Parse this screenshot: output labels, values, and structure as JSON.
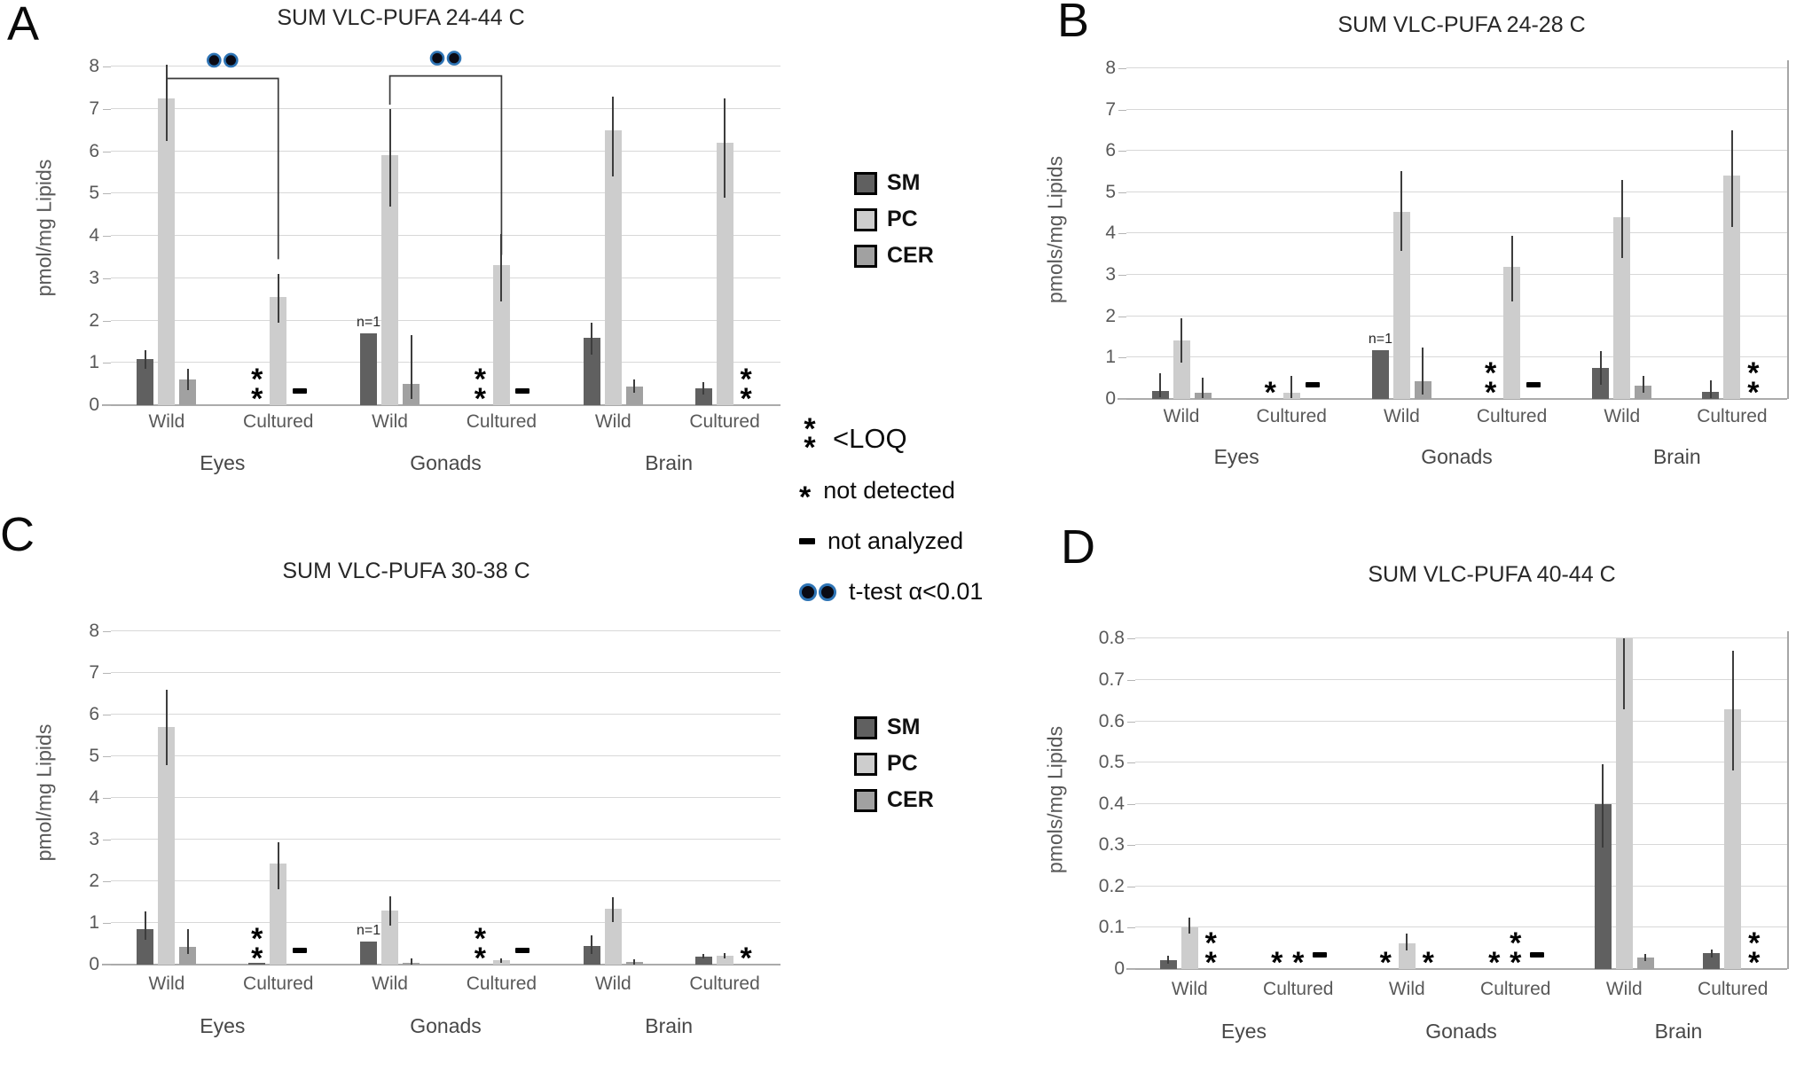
{
  "legend": {
    "series": [
      {
        "label": "SM",
        "color": "#606060"
      },
      {
        "label": "PC",
        "color": "#cdcdcd"
      },
      {
        "label": "CER",
        "color": "#a1a1a1"
      }
    ]
  },
  "symbol_legend": {
    "loq": "<LOQ",
    "nd": "not detected",
    "na": "not analyzed",
    "ttest": "t-test α<0.01"
  },
  "annotations": {
    "n1": "n=1"
  },
  "bracket_color": "#3a3a3a",
  "dot_fill": "#0a0a14",
  "dot_ring": "#2e74b5",
  "chart_data": [
    {
      "id": "A",
      "type": "bar",
      "label": "A",
      "title": "SUM VLC-PUFA 24-44 C",
      "ylabel": "pmol/mg Lipids",
      "ymax": 8,
      "ystep": 1,
      "decimals": 0,
      "series_names": [
        "SM",
        "PC",
        "CER"
      ],
      "groups": [
        {
          "name": "Eyes",
          "subs": [
            {
              "name": "Wild",
              "slots": [
                {
                  "s": "SM",
                  "v": 1.08,
                  "e": [
                    0.85,
                    1.3
                  ]
                },
                {
                  "s": "PC",
                  "v": 7.25,
                  "e": [
                    6.25,
                    8.05
                  ]
                },
                {
                  "s": "CER",
                  "v": 0.6,
                  "e": [
                    0.35,
                    0.85
                  ]
                }
              ]
            },
            {
              "name": "Cultured",
              "slots": [
                {
                  "s": "SM",
                  "sym": "loq"
                },
                {
                  "s": "PC",
                  "v": 2.55,
                  "e": [
                    1.95,
                    3.1
                  ]
                },
                {
                  "s": "CER",
                  "sym": "na"
                }
              ]
            }
          ]
        },
        {
          "name": "Gonads",
          "subs": [
            {
              "name": "Wild",
              "slots": [
                {
                  "s": "SM",
                  "v": 1.7,
                  "n1": true
                },
                {
                  "s": "PC",
                  "v": 5.9,
                  "e": [
                    4.7,
                    7.0
                  ]
                },
                {
                  "s": "CER",
                  "v": 0.5,
                  "e": [
                    0.15,
                    1.65
                  ]
                }
              ]
            },
            {
              "name": "Cultured",
              "slots": [
                {
                  "s": "SM",
                  "sym": "loq"
                },
                {
                  "s": "PC",
                  "v": 3.3,
                  "e": [
                    2.45,
                    4.05
                  ]
                },
                {
                  "s": "CER",
                  "sym": "na"
                }
              ]
            }
          ]
        },
        {
          "name": "Brain",
          "subs": [
            {
              "name": "Wild",
              "slots": [
                {
                  "s": "SM",
                  "v": 1.6,
                  "e": [
                    1.2,
                    1.95
                  ]
                },
                {
                  "s": "PC",
                  "v": 6.5,
                  "e": [
                    5.4,
                    7.3
                  ]
                },
                {
                  "s": "CER",
                  "v": 0.45,
                  "e": [
                    0.3,
                    0.6
                  ]
                }
              ]
            },
            {
              "name": "Cultured",
              "slots": [
                {
                  "s": "SM",
                  "v": 0.4,
                  "e": [
                    0.25,
                    0.55
                  ]
                },
                {
                  "s": "PC",
                  "v": 6.2,
                  "e": [
                    4.9,
                    7.25
                  ]
                },
                {
                  "s": "CER",
                  "sym": "loq"
                }
              ]
            }
          ]
        }
      ],
      "brackets": [
        {
          "group": 0,
          "top": 7.72,
          "left_drop": 7.3,
          "right_bottom": 3.45,
          "dots_y": 8.15
        },
        {
          "group": 1,
          "top": 7.78,
          "left_drop": 7.1,
          "right_bottom": 3.55,
          "dots_y": 8.2
        }
      ]
    },
    {
      "id": "B",
      "type": "bar",
      "label": "B",
      "title": "SUM VLC-PUFA 24-28 C",
      "ylabel": "pmols/mg Lipids",
      "ymax": 8,
      "ystep": 1,
      "decimals": 0,
      "series_names": [
        "SM",
        "PC",
        "CER"
      ],
      "groups": [
        {
          "name": "Eyes",
          "subs": [
            {
              "name": "Wild",
              "slots": [
                {
                  "s": "SM",
                  "v": 0.2,
                  "e": [
                    0.05,
                    0.62
                  ]
                },
                {
                  "s": "PC",
                  "v": 1.42,
                  "e": [
                    0.88,
                    1.95
                  ]
                },
                {
                  "s": "CER",
                  "v": 0.15,
                  "e": [
                    0.02,
                    0.52
                  ]
                }
              ]
            },
            {
              "name": "Cultured",
              "slots": [
                {
                  "s": "SM",
                  "sym": "nd"
                },
                {
                  "s": "PC",
                  "v": 0.15,
                  "e": [
                    0.03,
                    0.55
                  ]
                },
                {
                  "s": "CER",
                  "sym": "na"
                }
              ]
            }
          ]
        },
        {
          "name": "Gonads",
          "subs": [
            {
              "name": "Wild",
              "slots": [
                {
                  "s": "SM",
                  "v": 1.18,
                  "n1": true
                },
                {
                  "s": "PC",
                  "v": 4.52,
                  "e": [
                    3.58,
                    5.52
                  ]
                },
                {
                  "s": "CER",
                  "v": 0.42,
                  "e": [
                    0.1,
                    1.25
                  ]
                }
              ]
            },
            {
              "name": "Cultured",
              "slots": [
                {
                  "s": "SM",
                  "sym": "loq"
                },
                {
                  "s": "PC",
                  "v": 3.2,
                  "e": [
                    2.35,
                    3.95
                  ]
                },
                {
                  "s": "CER",
                  "sym": "na"
                }
              ]
            }
          ]
        },
        {
          "name": "Brain",
          "subs": [
            {
              "name": "Wild",
              "slots": [
                {
                  "s": "SM",
                  "v": 0.75,
                  "e": [
                    0.35,
                    1.15
                  ]
                },
                {
                  "s": "PC",
                  "v": 4.4,
                  "e": [
                    3.4,
                    5.3
                  ]
                },
                {
                  "s": "CER",
                  "v": 0.32,
                  "e": [
                    0.15,
                    0.55
                  ]
                }
              ]
            },
            {
              "name": "Cultured",
              "slots": [
                {
                  "s": "SM",
                  "v": 0.17,
                  "e": [
                    0.03,
                    0.45
                  ]
                },
                {
                  "s": "PC",
                  "v": 5.4,
                  "e": [
                    4.15,
                    6.5
                  ]
                },
                {
                  "s": "CER",
                  "sym": "loq"
                }
              ]
            }
          ]
        }
      ]
    },
    {
      "id": "C",
      "type": "bar",
      "label": "C",
      "title": "SUM VLC-PUFA 30-38 C",
      "ylabel": "pmol/mg Lipids",
      "ymax": 8,
      "ystep": 1,
      "decimals": 0,
      "series_names": [
        "SM",
        "PC",
        "CER"
      ],
      "groups": [
        {
          "name": "Eyes",
          "subs": [
            {
              "name": "Wild",
              "slots": [
                {
                  "s": "SM",
                  "v": 0.85,
                  "e": [
                    0.6,
                    1.28
                  ]
                },
                {
                  "s": "PC",
                  "v": 5.7,
                  "e": [
                    4.8,
                    6.6
                  ]
                },
                {
                  "s": "CER",
                  "v": 0.42,
                  "e": [
                    0.25,
                    0.85
                  ]
                }
              ]
            },
            {
              "name": "Cultured",
              "slots": [
                {
                  "s": "SM",
                  "v": 0.04,
                  "sym": "loq"
                },
                {
                  "s": "PC",
                  "v": 2.43,
                  "e": [
                    1.82,
                    2.93
                  ]
                },
                {
                  "s": "CER",
                  "sym": "na"
                }
              ]
            }
          ]
        },
        {
          "name": "Gonads",
          "subs": [
            {
              "name": "Wild",
              "slots": [
                {
                  "s": "SM",
                  "v": 0.55,
                  "n1": true
                },
                {
                  "s": "PC",
                  "v": 1.3,
                  "e": [
                    0.93,
                    1.65
                  ]
                },
                {
                  "s": "CER",
                  "v": 0.05,
                  "e": [
                    0.01,
                    0.15
                  ]
                }
              ]
            },
            {
              "name": "Cultured",
              "slots": [
                {
                  "s": "SM",
                  "sym": "loq"
                },
                {
                  "s": "PC",
                  "v": 0.1,
                  "e": [
                    0.04,
                    0.16
                  ]
                },
                {
                  "s": "CER",
                  "sym": "na"
                }
              ]
            }
          ]
        },
        {
          "name": "Brain",
          "subs": [
            {
              "name": "Wild",
              "slots": [
                {
                  "s": "SM",
                  "v": 0.45,
                  "e": [
                    0.25,
                    0.7
                  ]
                },
                {
                  "s": "PC",
                  "v": 1.35,
                  "e": [
                    1.03,
                    1.62
                  ]
                },
                {
                  "s": "CER",
                  "v": 0.06,
                  "e": [
                    0.01,
                    0.13
                  ]
                }
              ]
            },
            {
              "name": "Cultured",
              "slots": [
                {
                  "s": "SM",
                  "v": 0.2,
                  "e": [
                    0.14,
                    0.26
                  ]
                },
                {
                  "s": "PC",
                  "v": 0.21,
                  "e": [
                    0.15,
                    0.27
                  ]
                },
                {
                  "s": "CER",
                  "sym": "nd"
                }
              ]
            }
          ]
        }
      ]
    },
    {
      "id": "D",
      "type": "bar",
      "label": "D",
      "title": "SUM VLC-PUFA 40-44 C",
      "ylabel": "pmols/mg Lipids",
      "ymax": 0.8,
      "ystep": 0.1,
      "decimals": 1,
      "series_names": [
        "SM",
        "PC",
        "CER"
      ],
      "groups": [
        {
          "name": "Eyes",
          "subs": [
            {
              "name": "Wild",
              "slots": [
                {
                  "s": "SM",
                  "v": 0.022,
                  "e": [
                    0.012,
                    0.032
                  ]
                },
                {
                  "s": "PC",
                  "v": 0.1,
                  "e": [
                    0.085,
                    0.125
                  ]
                },
                {
                  "s": "CER",
                  "sym": "loq"
                }
              ]
            },
            {
              "name": "Cultured",
              "slots": [
                {
                  "s": "SM",
                  "sym": "nd"
                },
                {
                  "s": "PC",
                  "sym": "nd"
                },
                {
                  "s": "CER",
                  "sym": "na"
                }
              ]
            }
          ]
        },
        {
          "name": "Gonads",
          "subs": [
            {
              "name": "Wild",
              "slots": [
                {
                  "s": "SM",
                  "sym": "nd"
                },
                {
                  "s": "PC",
                  "v": 0.062,
                  "e": [
                    0.045,
                    0.085
                  ]
                },
                {
                  "s": "CER",
                  "sym": "nd"
                }
              ]
            },
            {
              "name": "Cultured",
              "slots": [
                {
                  "s": "SM",
                  "sym": "nd"
                },
                {
                  "s": "PC",
                  "sym": "loq"
                },
                {
                  "s": "CER",
                  "sym": "na"
                }
              ]
            }
          ]
        },
        {
          "name": "Brain",
          "subs": [
            {
              "name": "Wild",
              "slots": [
                {
                  "s": "SM",
                  "v": 0.4,
                  "e": [
                    0.295,
                    0.495
                  ]
                },
                {
                  "s": "PC",
                  "v": 0.8,
                  "e": [
                    0.63,
                    0.8
                  ]
                },
                {
                  "s": "CER",
                  "v": 0.028,
                  "e": [
                    0.02,
                    0.036
                  ]
                }
              ]
            },
            {
              "name": "Cultured",
              "slots": [
                {
                  "s": "SM",
                  "v": 0.038,
                  "e": [
                    0.028,
                    0.048
                  ]
                },
                {
                  "s": "PC",
                  "v": 0.63,
                  "e": [
                    0.48,
                    0.77
                  ]
                },
                {
                  "s": "CER",
                  "sym": "loq"
                }
              ]
            }
          ]
        }
      ]
    }
  ]
}
